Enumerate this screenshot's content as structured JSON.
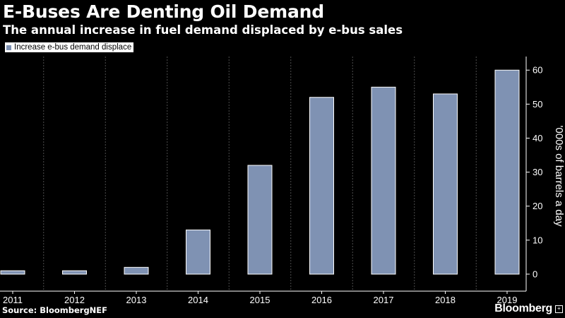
{
  "header": {
    "title": "E-Buses Are Denting Oil Demand",
    "subtitle": "The annual increase in fuel demand displaced by e-bus sales"
  },
  "legend": {
    "label": "Increase e-bus demand displace",
    "swatch_color": "#7f92b3"
  },
  "footer": {
    "source": "Source: BloombergNEF",
    "brand": "Bloomberg"
  },
  "colors": {
    "background": "#000000",
    "bar_fill": "#7f92b3",
    "bar_stroke": "#ffffff",
    "axis": "#ffffff",
    "grid": "#4d4d4d"
  },
  "chart_data": {
    "type": "bar",
    "categories": [
      "2011",
      "2012",
      "2013",
      "2014",
      "2015",
      "2016",
      "2017",
      "2018",
      "2019"
    ],
    "series": [
      {
        "name": "Increase e-bus demand displace",
        "values": [
          1,
          1,
          2,
          13,
          32,
          52,
          55,
          53,
          60
        ]
      }
    ],
    "title": "E-Buses Are Denting Oil Demand",
    "subtitle": "The annual increase in fuel demand displaced by e-bus sales",
    "xlabel": "",
    "ylabel": "'000s of barrels a day",
    "ylim": [
      -5,
      64
    ],
    "yticks": [
      0,
      10,
      20,
      30,
      40,
      50,
      60
    ],
    "y_axis_side": "right",
    "grid": "vertical-dotted",
    "legend_position": "top-left"
  }
}
